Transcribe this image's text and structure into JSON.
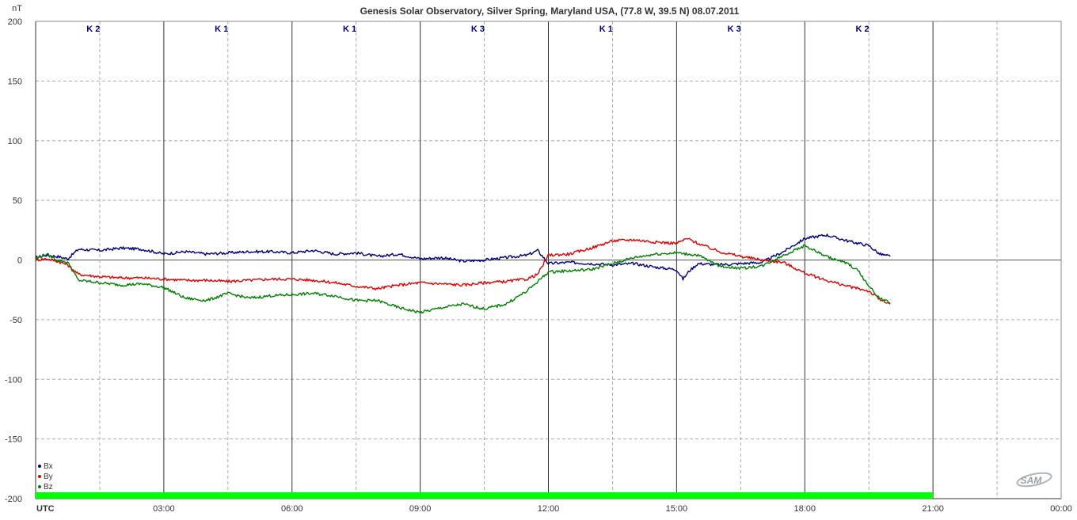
{
  "chart_data": {
    "type": "line",
    "title": "Genesis Solar Observatory, Silver Spring, Maryland USA, (77.8 W, 39.5 N)  08.07.2011",
    "ylabel": "nT",
    "xlabel": "UTC",
    "ylim": [
      -200,
      200
    ],
    "xlim": [
      0,
      24
    ],
    "y_ticks": [
      "200",
      "150",
      "100",
      "50",
      "0",
      "-50",
      "-100",
      "-150",
      "-200"
    ],
    "x_ticks": [
      "03:00",
      "06:00",
      "09:00",
      "12:00",
      "15:00",
      "18:00",
      "21:00",
      "00:00"
    ],
    "grid": true,
    "legend_position": "bottom-left",
    "k_index": [
      "K 2",
      "K 1",
      "K 1",
      "K 3",
      "K 1",
      "K 3",
      "K 2"
    ],
    "data_bar": {
      "color": "#00ff00",
      "start_hour": 0,
      "end_hour": 21
    },
    "logo_text": "SAM",
    "series": [
      {
        "name": "Bx",
        "color": "#000080",
        "x": [
          0,
          0.25,
          0.5,
          0.75,
          1.0,
          1.5,
          2.0,
          2.5,
          3.0,
          3.5,
          4.0,
          4.5,
          5.0,
          5.5,
          6.0,
          6.5,
          7.0,
          7.5,
          8.0,
          8.5,
          9.0,
          9.5,
          10.0,
          10.5,
          11.0,
          11.5,
          11.75,
          12.0,
          12.5,
          13.0,
          13.5,
          14.0,
          14.5,
          15.0,
          15.15,
          15.3,
          15.5,
          16.0,
          16.5,
          17.0,
          17.5,
          18.0,
          18.5,
          19.0,
          19.5,
          19.75,
          20.0
        ],
        "values": [
          2,
          4,
          3,
          1,
          9,
          8,
          10,
          9,
          5,
          7,
          5,
          6,
          7,
          7,
          6,
          8,
          5,
          6,
          3,
          5,
          1,
          2,
          -1,
          0,
          2,
          4,
          8,
          -3,
          -2,
          -3,
          -4,
          -3,
          -6,
          -8,
          -16,
          -9,
          -3,
          -4,
          -3,
          -2,
          7,
          18,
          21,
          16,
          12,
          5,
          3
        ]
      },
      {
        "name": "By",
        "color": "#e00000",
        "x": [
          0,
          0.25,
          0.5,
          0.75,
          1.0,
          1.5,
          2.0,
          2.5,
          3.0,
          3.5,
          4.0,
          4.5,
          5.0,
          5.5,
          6.0,
          6.5,
          7.0,
          7.5,
          8.0,
          8.5,
          9.0,
          9.5,
          10.0,
          10.5,
          11.0,
          11.5,
          11.75,
          12.0,
          12.5,
          13.0,
          13.5,
          14.0,
          14.5,
          15.0,
          15.25,
          15.5,
          16.0,
          16.5,
          17.0,
          17.5,
          18.0,
          18.5,
          19.0,
          19.5,
          19.75,
          20.0
        ],
        "values": [
          0,
          1,
          -1,
          -4,
          -12,
          -14,
          -15,
          -15,
          -16,
          -17,
          -17,
          -18,
          -17,
          -16,
          -16,
          -17,
          -19,
          -22,
          -24,
          -21,
          -19,
          -20,
          -21,
          -19,
          -18,
          -16,
          -12,
          4,
          5,
          10,
          16,
          17,
          15,
          14,
          18,
          14,
          7,
          3,
          0,
          -2,
          -11,
          -17,
          -22,
          -26,
          -33,
          -37
        ]
      },
      {
        "name": "Bz",
        "color": "#008000",
        "x": [
          0,
          0.25,
          0.5,
          0.75,
          1.0,
          1.5,
          2.0,
          2.5,
          3.0,
          3.5,
          4.0,
          4.5,
          5.0,
          5.5,
          6.0,
          6.5,
          7.0,
          7.5,
          8.0,
          8.5,
          9.0,
          9.5,
          10.0,
          10.5,
          11.0,
          11.5,
          11.75,
          12.0,
          12.5,
          13.0,
          13.5,
          14.0,
          14.5,
          15.0,
          15.5,
          16.0,
          16.5,
          17.0,
          17.5,
          18.0,
          18.5,
          19.0,
          19.25,
          19.5,
          19.75,
          20.0
        ],
        "values": [
          1,
          5,
          0,
          -2,
          -17,
          -19,
          -21,
          -20,
          -23,
          -32,
          -34,
          -28,
          -32,
          -30,
          -29,
          -28,
          -30,
          -34,
          -34,
          -40,
          -44,
          -40,
          -37,
          -41,
          -37,
          -26,
          -18,
          -10,
          -9,
          -8,
          -3,
          2,
          5,
          6,
          4,
          -5,
          -7,
          -5,
          4,
          12,
          3,
          -3,
          -9,
          -22,
          -32,
          -36
        ]
      }
    ]
  }
}
